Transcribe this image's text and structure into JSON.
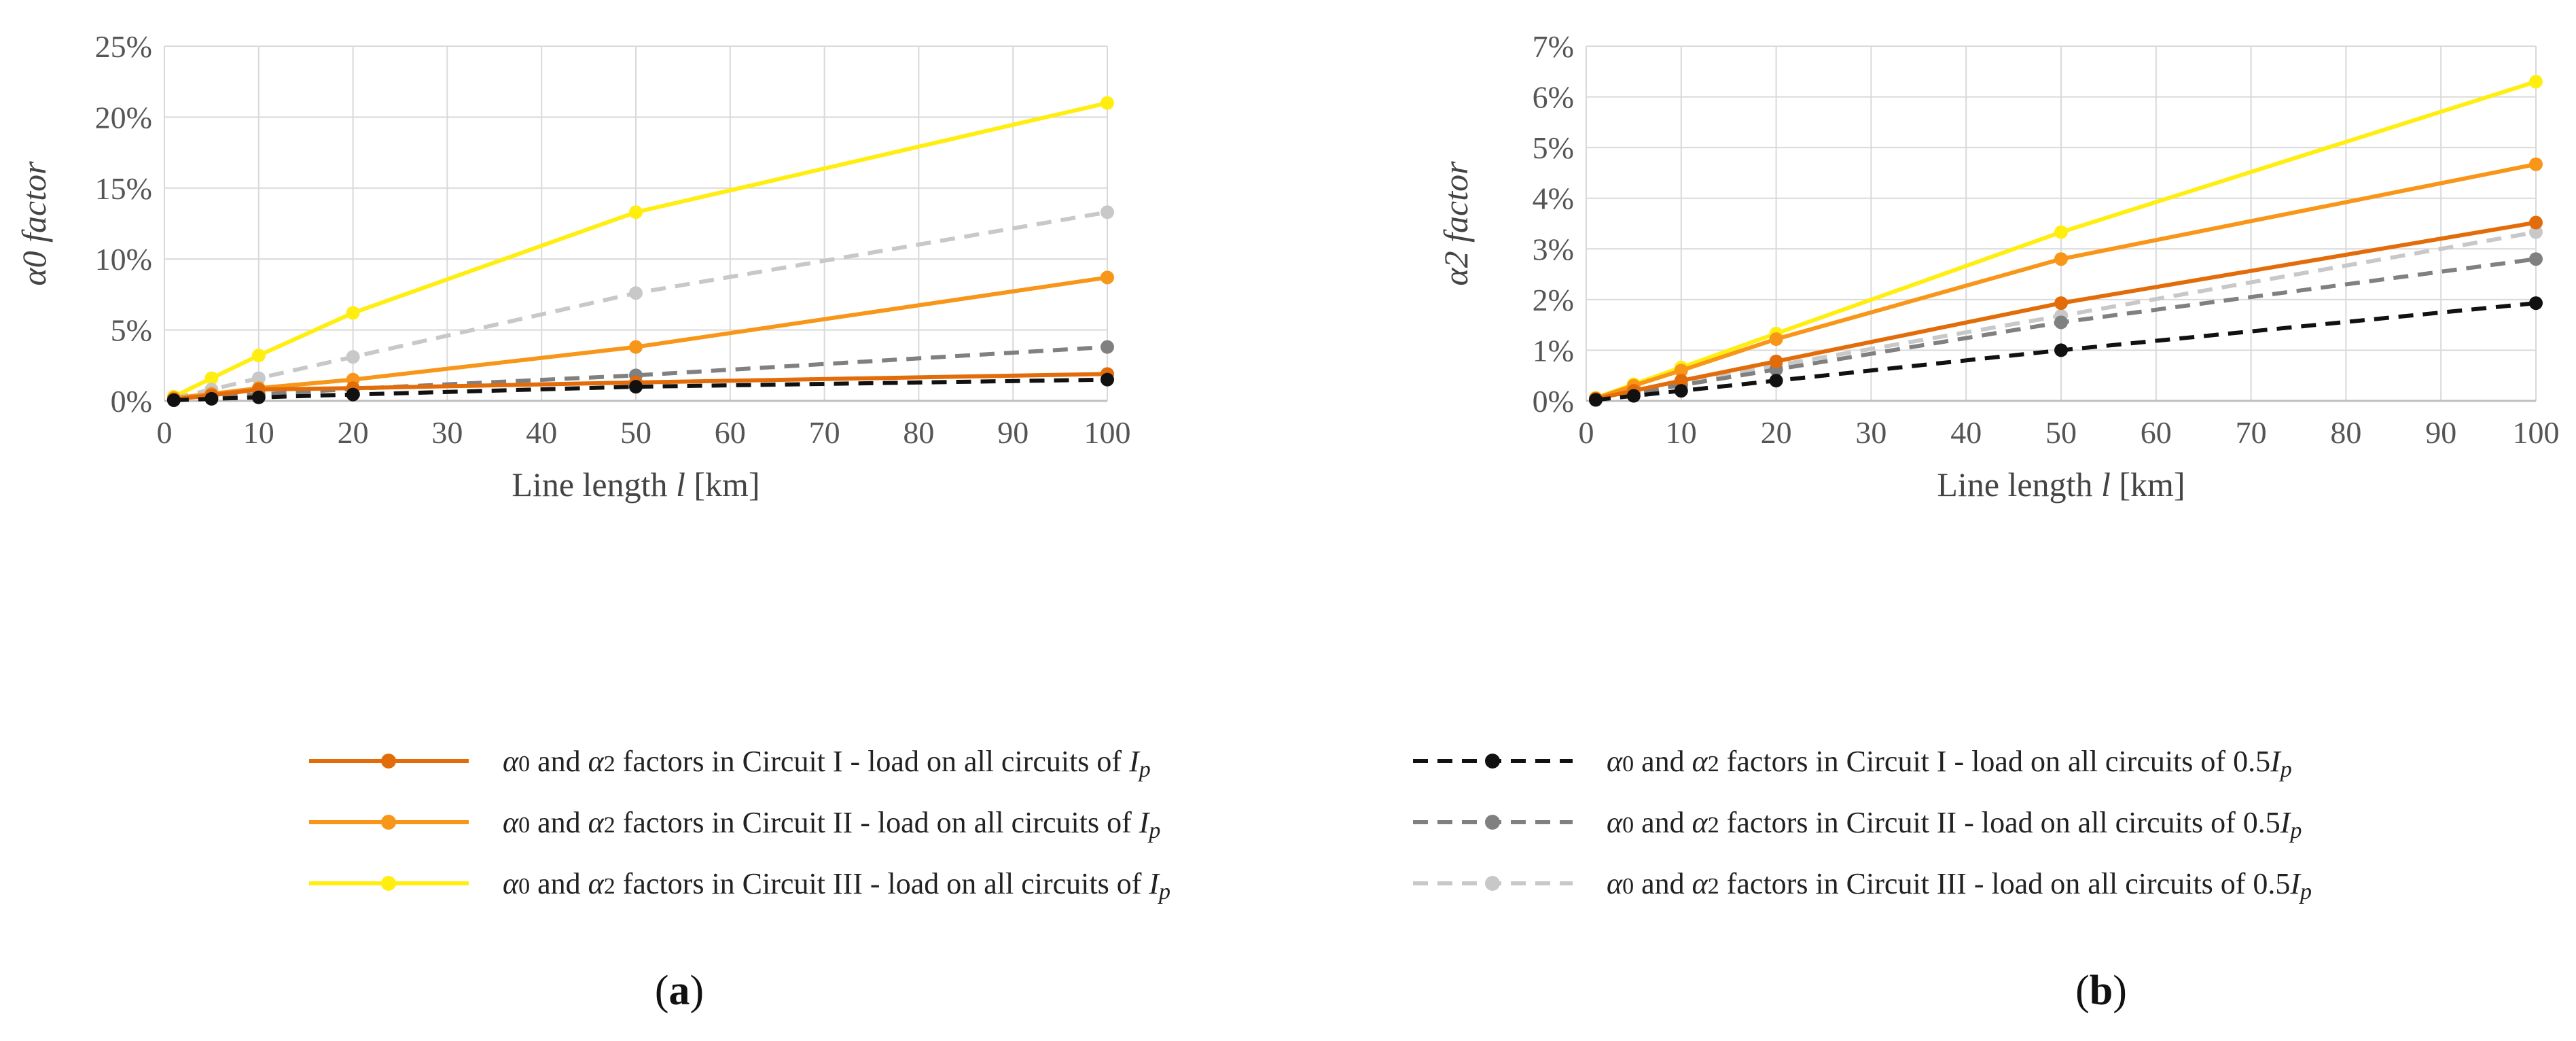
{
  "chart_data": [
    {
      "type": "line",
      "panel": "a",
      "caption_open": "(",
      "caption_letter": "a",
      "caption_close": ")",
      "xlabel_prefix": "Line length ",
      "xlabel_var": "l",
      "xlabel_suffix": " [km]",
      "ylabel": "α0 factor",
      "xlim": [
        0,
        100
      ],
      "ylim": [
        0,
        25
      ],
      "xticks": [
        0,
        10,
        20,
        30,
        40,
        50,
        60,
        70,
        80,
        90,
        100
      ],
      "yticks": [
        0,
        5,
        10,
        15,
        20,
        25
      ],
      "ytick_labels": [
        "0%",
        "5%",
        "10%",
        "15%",
        "20%",
        "25%"
      ],
      "x": [
        1,
        5,
        10,
        20,
        50,
        100
      ],
      "grid": true,
      "series": [
        {
          "name": "Circuit I - Ip",
          "values": [
            0.1,
            0.4,
            0.8,
            0.9,
            1.3,
            1.9
          ]
        },
        {
          "name": "Circuit II - Ip",
          "values": [
            0.2,
            0.5,
            0.9,
            1.5,
            3.8,
            8.7
          ]
        },
        {
          "name": "Circuit III - Ip",
          "values": [
            0.3,
            1.6,
            3.2,
            6.2,
            13.3,
            21.0
          ]
        },
        {
          "name": "Circuit I - 0.5Ip",
          "values": [
            0.05,
            0.15,
            0.25,
            0.45,
            1.0,
            1.5
          ]
        },
        {
          "name": "Circuit II - 0.5Ip",
          "values": [
            0.1,
            0.3,
            0.45,
            0.85,
            1.8,
            3.8
          ]
        },
        {
          "name": "Circuit III - 0.5Ip",
          "values": [
            0.2,
            0.8,
            1.6,
            3.1,
            7.6,
            13.3
          ]
        }
      ]
    },
    {
      "type": "line",
      "panel": "b",
      "caption_open": "(",
      "caption_letter": "b",
      "caption_close": ")",
      "xlabel_prefix": "Line length ",
      "xlabel_var": "l",
      "xlabel_suffix": " [km]",
      "ylabel": "α2 factor",
      "xlim": [
        0,
        100
      ],
      "ylim": [
        0,
        7
      ],
      "xticks": [
        0,
        10,
        20,
        30,
        40,
        50,
        60,
        70,
        80,
        90,
        100
      ],
      "yticks": [
        0,
        1,
        2,
        3,
        4,
        5,
        6,
        7
      ],
      "ytick_labels": [
        "0%",
        "1%",
        "2%",
        "3%",
        "4%",
        "5%",
        "6%",
        "7%"
      ],
      "x": [
        1,
        5,
        10,
        20,
        50,
        100
      ],
      "grid": true,
      "series": [
        {
          "name": "Circuit I - Ip",
          "values": [
            0.04,
            0.2,
            0.4,
            0.78,
            1.93,
            3.52
          ]
        },
        {
          "name": "Circuit II - Ip",
          "values": [
            0.05,
            0.3,
            0.6,
            1.22,
            2.8,
            4.67
          ]
        },
        {
          "name": "Circuit III - Ip",
          "values": [
            0.06,
            0.33,
            0.66,
            1.33,
            3.33,
            6.3
          ]
        },
        {
          "name": "Circuit I - 0.5Ip",
          "values": [
            0.02,
            0.1,
            0.2,
            0.4,
            1.0,
            1.93
          ]
        },
        {
          "name": "Circuit II - 0.5Ip",
          "values": [
            0.03,
            0.16,
            0.31,
            0.62,
            1.55,
            2.8
          ]
        },
        {
          "name": "Circuit III - 0.5Ip",
          "values": [
            0.04,
            0.2,
            0.36,
            0.7,
            1.68,
            3.33
          ]
        }
      ]
    }
  ],
  "legend": {
    "entries": [
      {
        "a0": "α",
        "s0": "0",
        "mid": " and ",
        "a2": "α",
        "s2": "2",
        "text": " factors in Circuit I - load on all circuits of ",
        "coef": "",
        "var": "I",
        "sub": "p"
      },
      {
        "a0": "α",
        "s0": "0",
        "mid": " and ",
        "a2": "α",
        "s2": "2",
        "text": " factors in Circuit II - load on all circuits of ",
        "coef": "",
        "var": "I",
        "sub": "p"
      },
      {
        "a0": "α",
        "s0": "0",
        "mid": " and ",
        "a2": "α",
        "s2": "2",
        "text": " factors in Circuit III - load on all circuits of ",
        "coef": "",
        "var": "I",
        "sub": "p"
      },
      {
        "a0": "α",
        "s0": "0",
        "mid": " and ",
        "a2": "α",
        "s2": "2",
        "text": " factors in Circuit I - load on all circuits of ",
        "coef": "0.5",
        "var": "I",
        "sub": "p"
      },
      {
        "a0": "α",
        "s0": "0",
        "mid": " and ",
        "a2": "α",
        "s2": "2",
        "text": " factors in Circuit II - load on all circuits of ",
        "coef": "0.5",
        "var": "I",
        "sub": "p"
      },
      {
        "a0": "α",
        "s0": "0",
        "mid": " and ",
        "a2": "α",
        "s2": "2",
        "text": " factors in Circuit III - load on all circuits of ",
        "coef": "0.5",
        "var": "I",
        "sub": "p"
      }
    ]
  },
  "colors": {
    "series": [
      "#e36c0a",
      "#f79619",
      "#ffee10",
      "#111111",
      "#808080",
      "#c8c8c8"
    ],
    "dashed": [
      false,
      false,
      false,
      true,
      true,
      true
    ],
    "grid": "#d9d9d9",
    "axis": "#bfbfbf"
  }
}
